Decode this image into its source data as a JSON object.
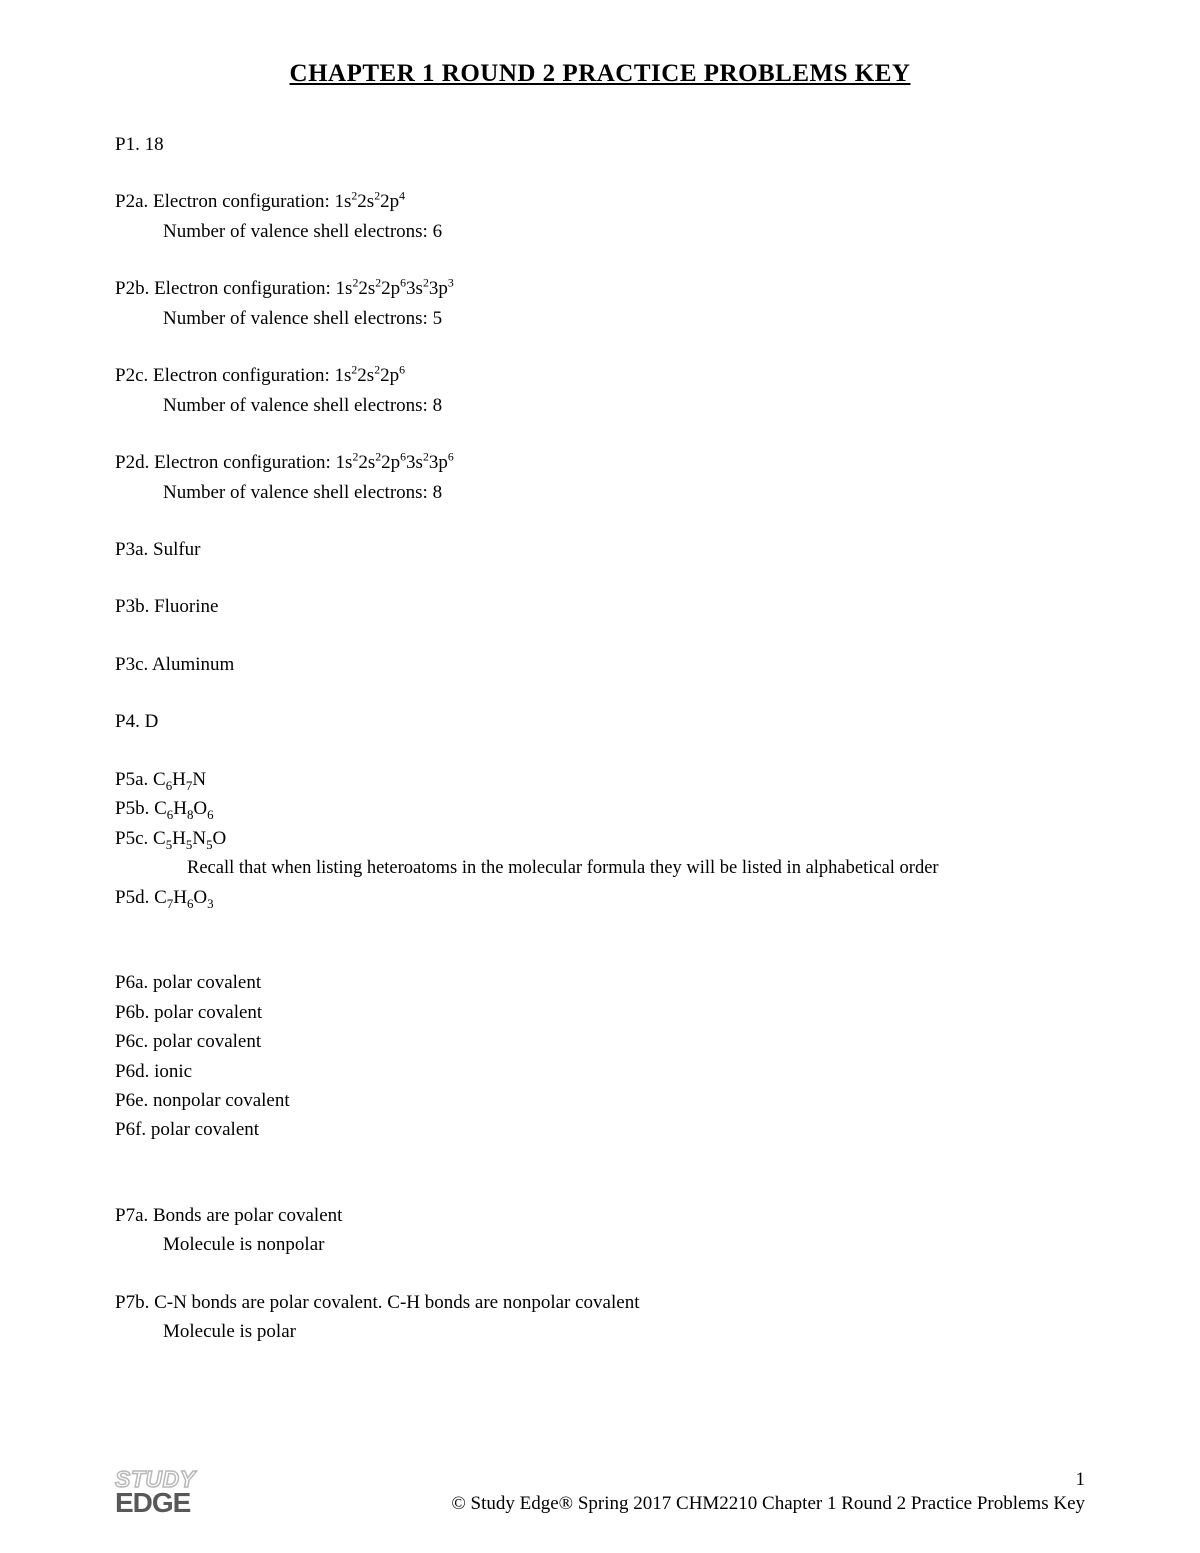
{
  "title": "CHAPTER 1 ROUND 2 PRACTICE PROBLEMS KEY",
  "p1": "P1.  18",
  "p2a_1": "P2a. Electron configuration: 1s²2s²2p⁴",
  "p2a_2": "Number of valence shell electrons: 6",
  "p2b_1": "P2b. Electron configuration: 1s²2s²2p⁶3s²3p³",
  "p2b_2": "Number of valence shell electrons: 5",
  "p2c_1": "P2c. Electron configuration: 1s²2s²2p⁶",
  "p2c_2": "Number of valence shell electrons: 8",
  "p2d_1": "P2d. Electron configuration: 1s²2s²2p⁶3s²3p⁶",
  "p2d_2": "Number of valence shell electrons: 8",
  "p3a": "P3a. Sulfur",
  "p3b": "P3b. Fluorine",
  "p3c": "P3c. Aluminum",
  "p4": "P4.  D",
  "p5a": "P5a. C₆H₇N",
  "p5b": "P5b. C₆H₈O₆",
  "p5c": "P5c. C₅H₅N₅O",
  "note": "Recall that when listing heteroatoms in the molecular formula they will be listed in alphabetical order",
  "p5d": "P5d. C₇H₆O₃",
  "p6a": "P6a. polar covalent",
  "p6b": "P6b. polar covalent",
  "p6c": "P6c. polar covalent",
  "p6d": "P6d. ionic",
  "p6e": "P6e. nonpolar covalent",
  "p6f": "P6f. polar covalent",
  "p7a_1": "P7a. Bonds are polar covalent",
  "p7a_2": "Molecule is nonpolar",
  "p7b_1": "P7b. C-N bonds are polar covalent.  C-H bonds are nonpolar covalent",
  "p7b_2": "Molecule is polar",
  "logo_top": "STUDY",
  "logo_bot": "EDGE",
  "page_num": "1",
  "copyright": "© Study Edge® Spring 2017 CHM2210 Chapter 1 Round 2 Practice Problems Key"
}
